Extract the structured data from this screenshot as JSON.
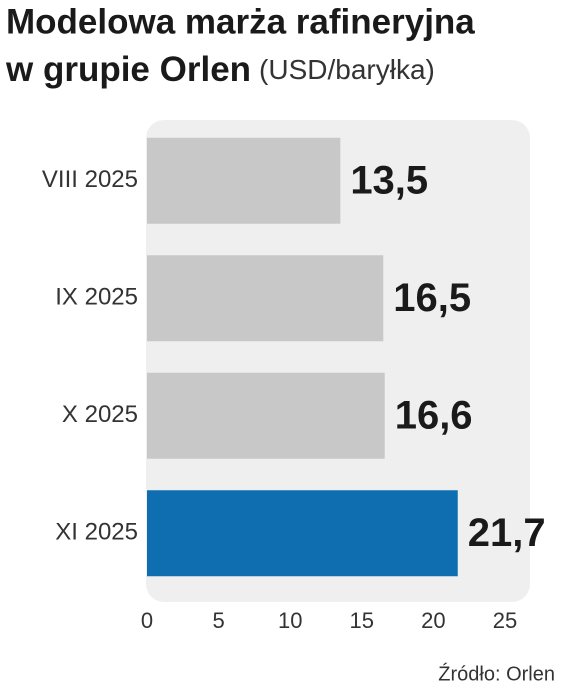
{
  "chart_data": {
    "type": "bar",
    "orientation": "horizontal",
    "title": [
      "Modelowa marża rafineryjna",
      "w grupie Orlen"
    ],
    "unit": "(USD/baryłka)",
    "categories": [
      "VIII 2025",
      "IX 2025",
      "X 2025",
      "XI 2025"
    ],
    "values": [
      13.5,
      16.5,
      16.6,
      21.7
    ],
    "value_labels": [
      "13,5",
      "16,5",
      "16,6",
      "21,7"
    ],
    "colors": [
      "#c8c8c8",
      "#c8c8c8",
      "#c8c8c8",
      "#0e6eb0"
    ],
    "xlim": [
      0,
      25
    ],
    "xticks": [
      0,
      5,
      10,
      15,
      20,
      25
    ],
    "source": "Źródło: Orlen"
  }
}
